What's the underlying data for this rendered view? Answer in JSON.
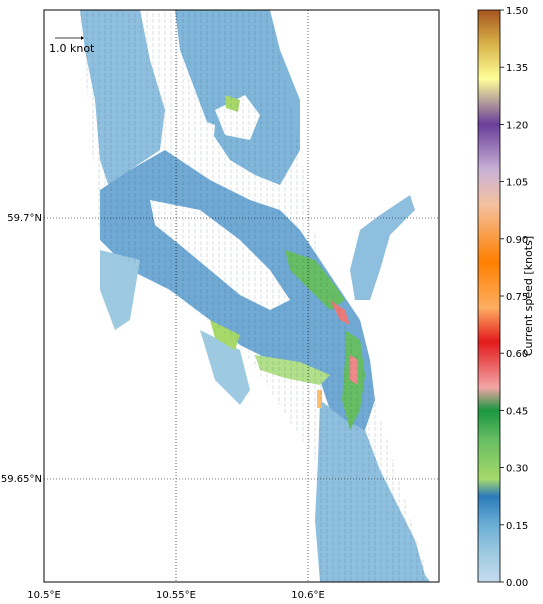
{
  "map": {
    "lon_range": [
      10.5,
      10.65
    ],
    "lat_range": [
      59.628,
      59.737
    ],
    "grid_lon": [
      10.55,
      10.6
    ],
    "grid_lat": [
      59.65,
      59.7
    ],
    "x_tick_labels": [
      "10.5°E",
      "10.55°E",
      "10.6°E"
    ],
    "y_tick_labels": [
      "59.7°N",
      "59.65°N"
    ],
    "reference_arrow_label": "1.0 knot"
  },
  "colorbar": {
    "label": "Current speed [knots]",
    "min": 0.0,
    "max": 1.5,
    "tick_labels": [
      "0.00",
      "0.15",
      "0.30",
      "0.45",
      "0.60",
      "0.75",
      "0.90",
      "1.05",
      "1.20",
      "1.35",
      "1.50"
    ],
    "colors": [
      "#9ecae1",
      "#6baed6",
      "#2c7fb8",
      "#b2df8a",
      "#33a02c",
      "#fb9a99",
      "#e31a1c",
      "#fdbf6f",
      "#ff7f00",
      "#cab2d6",
      "#6a3d9a",
      "#ffff99",
      "#b15928"
    ]
  }
}
